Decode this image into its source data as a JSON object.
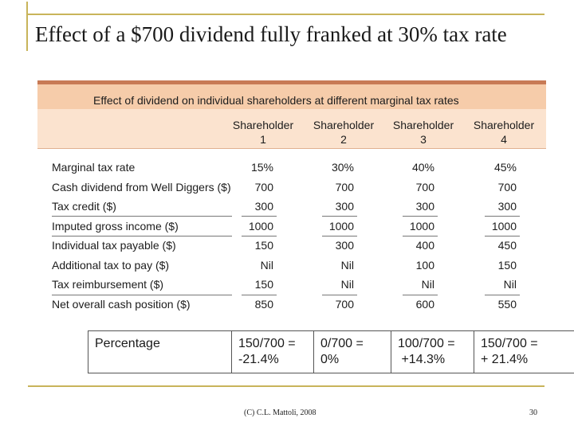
{
  "slide": {
    "title": "Effect of a $700 dividend fully franked at 30% tax rate",
    "footer_copyright": "(C) C.L. Mattoli, 2008",
    "page_number": "30"
  },
  "table": {
    "title": "Effect of dividend on individual shareholders at different marginal tax rates",
    "shareholders": [
      {
        "name": "Shareholder",
        "num": "1"
      },
      {
        "name": "Shareholder",
        "num": "2"
      },
      {
        "name": "Shareholder",
        "num": "3"
      },
      {
        "name": "Shareholder",
        "num": "4"
      }
    ],
    "rows": [
      {
        "label": "Marginal tax rate",
        "values": [
          "15%",
          "30%",
          "40%",
          "45%"
        ]
      },
      {
        "label": "Cash dividend from Well Diggers ($)",
        "values": [
          "700",
          "700",
          "700",
          "700"
        ]
      },
      {
        "label": "Tax credit ($)",
        "values": [
          "300",
          "300",
          "300",
          "300"
        ]
      },
      {
        "label": "Imputed gross income ($)",
        "values": [
          "1000",
          "1000",
          "1000",
          "1000"
        ]
      },
      {
        "label": "Individual tax payable ($)",
        "values": [
          "150",
          "300",
          "400",
          "450"
        ]
      },
      {
        "label": "Additional tax to pay ($)",
        "values": [
          "Nil",
          "Nil",
          "100",
          "150"
        ]
      },
      {
        "label": "Tax reimbursement ($)",
        "values": [
          "150",
          "Nil",
          "Nil",
          "Nil"
        ]
      },
      {
        "label": "Net overall cash position ($)",
        "values": [
          "850",
          "700",
          "600",
          "550"
        ]
      }
    ]
  },
  "percentage_row": {
    "label": "Percentage",
    "cells": [
      {
        "line1": "150/700 =",
        "line2": "-21.4%"
      },
      {
        "line1": "0/700 =",
        "line2": "0%"
      },
      {
        "line1": "100/700 =",
        "line2": " +14.3%"
      },
      {
        "line1": "150/700 =",
        "line2": "+ 21.4%"
      }
    ]
  }
}
